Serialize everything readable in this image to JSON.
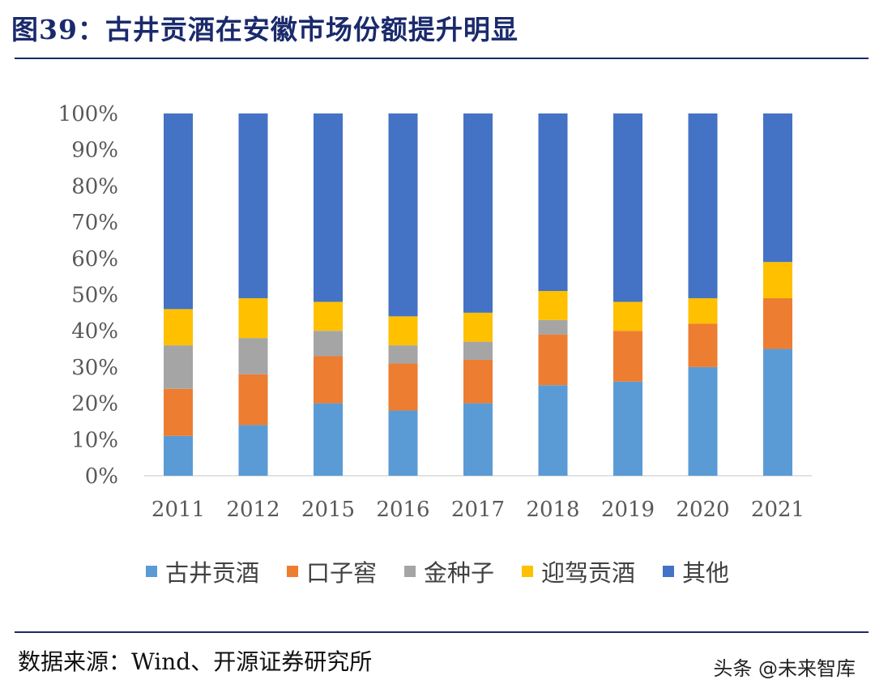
{
  "title": "图39：古井贡酒在安徽市场份额提升明显",
  "source": "数据来源：Wind、开源证券研究所",
  "watermark": "头条 @未来智库",
  "colors": {
    "title": "#1a2a6c",
    "series": [
      "#5b9bd5",
      "#ed7d31",
      "#a5a5a5",
      "#ffc000",
      "#4472c4"
    ]
  },
  "chart_data": {
    "type": "bar",
    "stacked": true,
    "title": "图39：古井贡酒在安徽市场份额提升明显",
    "xlabel": "",
    "ylabel": "",
    "ylim": [
      0,
      100
    ],
    "y_ticks": [
      "0%",
      "10%",
      "20%",
      "30%",
      "40%",
      "50%",
      "60%",
      "70%",
      "80%",
      "90%",
      "100%"
    ],
    "categories": [
      "2011",
      "2012",
      "2015",
      "2016",
      "2017",
      "2018",
      "2019",
      "2020",
      "2021"
    ],
    "series": [
      {
        "name": "古井贡酒",
        "values": [
          11,
          14,
          20,
          18,
          20,
          25,
          26,
          30,
          35
        ]
      },
      {
        "name": "口子窖",
        "values": [
          13,
          14,
          13,
          13,
          12,
          14,
          14,
          12,
          14
        ]
      },
      {
        "name": "金种子",
        "values": [
          12,
          10,
          7,
          5,
          5,
          4,
          0,
          0,
          0
        ]
      },
      {
        "name": "迎驾贡酒",
        "values": [
          10,
          11,
          8,
          8,
          8,
          8,
          8,
          7,
          10
        ]
      },
      {
        "name": "其他",
        "values": [
          54,
          51,
          52,
          56,
          55,
          49,
          52,
          51,
          41
        ]
      }
    ],
    "legend": "bottom",
    "grid": false
  }
}
